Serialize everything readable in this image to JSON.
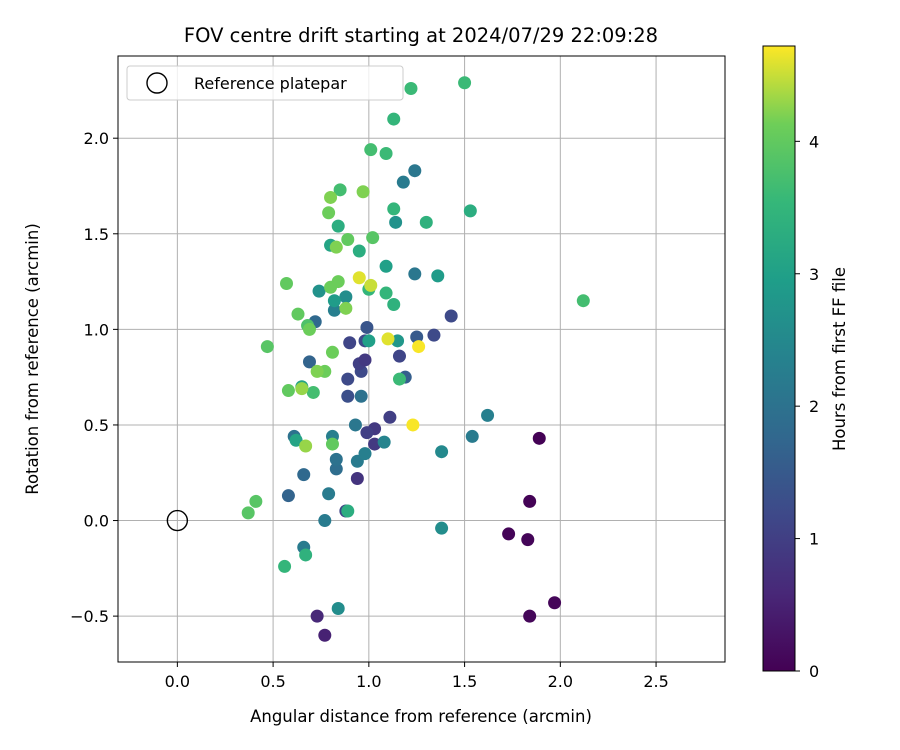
{
  "chart_data": {
    "type": "scatter",
    "title": "FOV centre drift starting at 2024/07/29 22:09:28",
    "xlabel": "Angular distance from reference (arcmin)",
    "ylabel": "Rotation from reference (arcmin)",
    "xlim": [
      -0.31,
      2.86
    ],
    "ylim": [
      -0.74,
      2.43
    ],
    "xticks": [
      {
        "value": 0.0,
        "label": "0.0"
      },
      {
        "value": 0.5,
        "label": "0.5"
      },
      {
        "value": 1.0,
        "label": "1.0"
      },
      {
        "value": 1.5,
        "label": "1.5"
      },
      {
        "value": 2.0,
        "label": "2.0"
      },
      {
        "value": 2.5,
        "label": "2.5"
      }
    ],
    "yticks": [
      {
        "value": -0.5,
        "label": "−0.5"
      },
      {
        "value": 0.0,
        "label": "0.0"
      },
      {
        "value": 0.5,
        "label": "0.5"
      },
      {
        "value": 1.0,
        "label": "1.0"
      },
      {
        "value": 1.5,
        "label": "1.5"
      },
      {
        "value": 2.0,
        "label": "2.0"
      }
    ],
    "grid": true,
    "legend": {
      "placement": "top-left",
      "entries": [
        "Reference platepar"
      ]
    },
    "reference_point": {
      "x": 0.0,
      "y": 0.0,
      "label": "Reference platepar"
    },
    "colorbar": {
      "label": "Hours from first FF file",
      "colormap": "viridis",
      "range": [
        0,
        4.72
      ],
      "ticks": [
        {
          "value": 0,
          "label": "0"
        },
        {
          "value": 1,
          "label": "1"
        },
        {
          "value": 2,
          "label": "2"
        },
        {
          "value": 3,
          "label": "3"
        },
        {
          "value": 4,
          "label": "4"
        }
      ]
    },
    "points": [
      {
        "x": 1.89,
        "y": 0.43,
        "t": 0.02
      },
      {
        "x": 1.84,
        "y": 0.1,
        "t": 0.03
      },
      {
        "x": 1.73,
        "y": -0.07,
        "t": 0.05
      },
      {
        "x": 1.83,
        "y": -0.1,
        "t": 0.06
      },
      {
        "x": 1.97,
        "y": -0.43,
        "t": 0.08
      },
      {
        "x": 1.84,
        "y": -0.5,
        "t": 0.09
      },
      {
        "x": 0.77,
        "y": -0.6,
        "t": 0.5
      },
      {
        "x": 0.73,
        "y": -0.5,
        "t": 0.6
      },
      {
        "x": 0.94,
        "y": 0.22,
        "t": 0.8
      },
      {
        "x": 1.03,
        "y": 0.4,
        "t": 0.9
      },
      {
        "x": 1.03,
        "y": 0.48,
        "t": 0.9
      },
      {
        "x": 0.99,
        "y": 0.46,
        "t": 1.0
      },
      {
        "x": 0.88,
        "y": 0.05,
        "t": 1.1
      },
      {
        "x": 1.11,
        "y": 0.54,
        "t": 1.0
      },
      {
        "x": 0.89,
        "y": 0.65,
        "t": 1.3
      },
      {
        "x": 0.89,
        "y": 0.74,
        "t": 1.2
      },
      {
        "x": 0.96,
        "y": 0.78,
        "t": 1.2
      },
      {
        "x": 0.95,
        "y": 0.82,
        "t": 1.0
      },
      {
        "x": 0.98,
        "y": 0.84,
        "t": 0.9
      },
      {
        "x": 0.9,
        "y": 0.93,
        "t": 1.1
      },
      {
        "x": 0.98,
        "y": 0.94,
        "t": 1.2
      },
      {
        "x": 0.99,
        "y": 1.01,
        "t": 1.4
      },
      {
        "x": 1.16,
        "y": 0.86,
        "t": 1.1
      },
      {
        "x": 1.34,
        "y": 0.97,
        "t": 1.2
      },
      {
        "x": 1.43,
        "y": 1.07,
        "t": 1.2
      },
      {
        "x": 1.25,
        "y": 0.96,
        "t": 1.5
      },
      {
        "x": 1.19,
        "y": 0.75,
        "t": 1.6
      },
      {
        "x": 0.58,
        "y": 0.13,
        "t": 1.7
      },
      {
        "x": 0.66,
        "y": 0.24,
        "t": 1.8
      },
      {
        "x": 0.83,
        "y": 0.27,
        "t": 1.9
      },
      {
        "x": 0.83,
        "y": 0.32,
        "t": 2.0
      },
      {
        "x": 0.61,
        "y": 0.44,
        "t": 2.0
      },
      {
        "x": 0.69,
        "y": 0.83,
        "t": 1.7
      },
      {
        "x": 0.72,
        "y": 1.04,
        "t": 1.8
      },
      {
        "x": 0.96,
        "y": 0.65,
        "t": 2.0
      },
      {
        "x": 0.93,
        "y": 0.5,
        "t": 2.1
      },
      {
        "x": 0.94,
        "y": 0.31,
        "t": 2.2
      },
      {
        "x": 0.98,
        "y": 0.35,
        "t": 2.3
      },
      {
        "x": 1.08,
        "y": 0.41,
        "t": 2.4
      },
      {
        "x": 0.66,
        "y": -0.14,
        "t": 2.2
      },
      {
        "x": 0.77,
        "y": 0.0,
        "t": 2.2
      },
      {
        "x": 0.79,
        "y": 0.14,
        "t": 2.2
      },
      {
        "x": 0.81,
        "y": 0.44,
        "t": 2.3
      },
      {
        "x": 1.38,
        "y": 0.36,
        "t": 2.5
      },
      {
        "x": 1.38,
        "y": -0.04,
        "t": 2.6
      },
      {
        "x": 1.54,
        "y": 0.44,
        "t": 2.2
      },
      {
        "x": 1.62,
        "y": 0.55,
        "t": 2.3
      },
      {
        "x": 1.24,
        "y": 1.29,
        "t": 2.1
      },
      {
        "x": 1.24,
        "y": 1.83,
        "t": 2.1
      },
      {
        "x": 1.18,
        "y": 1.77,
        "t": 2.2
      },
      {
        "x": 0.84,
        "y": -0.46,
        "t": 2.6
      },
      {
        "x": 0.82,
        "y": 1.1,
        "t": 2.3
      },
      {
        "x": 0.88,
        "y": 1.17,
        "t": 2.6
      },
      {
        "x": 0.74,
        "y": 1.2,
        "t": 2.7
      },
      {
        "x": 1.15,
        "y": 0.94,
        "t": 2.8
      },
      {
        "x": 1.14,
        "y": 1.56,
        "t": 2.7
      },
      {
        "x": 1.36,
        "y": 1.28,
        "t": 2.9
      },
      {
        "x": 1.09,
        "y": 1.33,
        "t": 3.0
      },
      {
        "x": 0.8,
        "y": 1.44,
        "t": 3.1
      },
      {
        "x": 0.82,
        "y": 1.15,
        "t": 2.9
      },
      {
        "x": 1.0,
        "y": 0.94,
        "t": 3.0
      },
      {
        "x": 0.62,
        "y": 0.42,
        "t": 3.1
      },
      {
        "x": 0.65,
        "y": 0.7,
        "t": 3.1
      },
      {
        "x": 0.89,
        "y": 0.05,
        "t": 3.3
      },
      {
        "x": 1.53,
        "y": 1.62,
        "t": 3.3
      },
      {
        "x": 1.3,
        "y": 1.56,
        "t": 3.4
      },
      {
        "x": 1.13,
        "y": 1.63,
        "t": 3.5
      },
      {
        "x": 0.95,
        "y": 1.41,
        "t": 3.3
      },
      {
        "x": 0.84,
        "y": 1.54,
        "t": 3.3
      },
      {
        "x": 1.13,
        "y": 1.13,
        "t": 3.4
      },
      {
        "x": 1.09,
        "y": 1.19,
        "t": 3.5
      },
      {
        "x": 1.0,
        "y": 1.21,
        "t": 3.5
      },
      {
        "x": 1.16,
        "y": 0.74,
        "t": 3.6
      },
      {
        "x": 0.67,
        "y": -0.18,
        "t": 3.4
      },
      {
        "x": 0.56,
        "y": -0.24,
        "t": 3.5
      },
      {
        "x": 1.13,
        "y": 2.1,
        "t": 3.5
      },
      {
        "x": 1.22,
        "y": 2.26,
        "t": 3.6
      },
      {
        "x": 1.5,
        "y": 2.29,
        "t": 3.6
      },
      {
        "x": 2.12,
        "y": 1.15,
        "t": 3.7
      },
      {
        "x": 1.09,
        "y": 1.92,
        "t": 3.6
      },
      {
        "x": 1.01,
        "y": 1.94,
        "t": 3.7
      },
      {
        "x": 0.85,
        "y": 1.73,
        "t": 3.7
      },
      {
        "x": 0.71,
        "y": 0.67,
        "t": 3.7
      },
      {
        "x": 0.68,
        "y": 1.02,
        "t": 3.8
      },
      {
        "x": 1.02,
        "y": 1.48,
        "t": 3.9
      },
      {
        "x": 0.89,
        "y": 1.47,
        "t": 4.0
      },
      {
        "x": 0.41,
        "y": 0.1,
        "t": 3.9
      },
      {
        "x": 0.37,
        "y": 0.04,
        "t": 3.9
      },
      {
        "x": 0.47,
        "y": 0.91,
        "t": 3.9
      },
      {
        "x": 0.58,
        "y": 0.68,
        "t": 4.0
      },
      {
        "x": 0.63,
        "y": 1.08,
        "t": 4.0
      },
      {
        "x": 0.57,
        "y": 1.24,
        "t": 4.0
      },
      {
        "x": 0.69,
        "y": 1.0,
        "t": 4.1
      },
      {
        "x": 0.81,
        "y": 0.4,
        "t": 4.0
      },
      {
        "x": 0.77,
        "y": 0.78,
        "t": 4.1
      },
      {
        "x": 0.81,
        "y": 0.88,
        "t": 4.1
      },
      {
        "x": 0.79,
        "y": 1.61,
        "t": 4.1
      },
      {
        "x": 0.8,
        "y": 1.69,
        "t": 4.2
      },
      {
        "x": 0.97,
        "y": 1.72,
        "t": 4.2
      },
      {
        "x": 0.83,
        "y": 1.43,
        "t": 4.2
      },
      {
        "x": 0.8,
        "y": 1.22,
        "t": 4.1
      },
      {
        "x": 0.84,
        "y": 1.25,
        "t": 4.1
      },
      {
        "x": 0.88,
        "y": 1.11,
        "t": 4.2
      },
      {
        "x": 0.65,
        "y": 0.69,
        "t": 4.3
      },
      {
        "x": 0.67,
        "y": 0.39,
        "t": 4.3
      },
      {
        "x": 0.73,
        "y": 0.78,
        "t": 4.2
      },
      {
        "x": 1.01,
        "y": 1.23,
        "t": 4.5
      },
      {
        "x": 0.95,
        "y": 1.27,
        "t": 4.6
      },
      {
        "x": 1.1,
        "y": 0.95,
        "t": 4.6
      },
      {
        "x": 1.26,
        "y": 0.91,
        "t": 4.7
      },
      {
        "x": 1.23,
        "y": 0.5,
        "t": 4.7
      }
    ]
  }
}
